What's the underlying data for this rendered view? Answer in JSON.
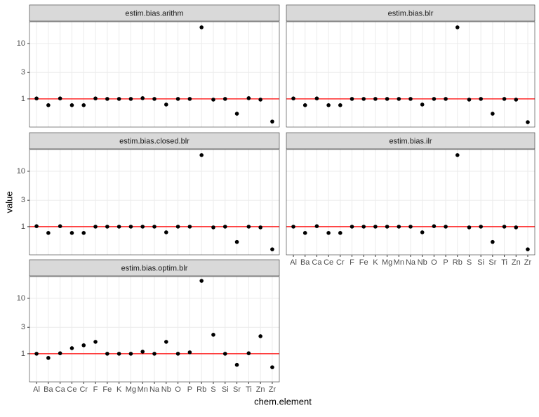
{
  "chart_data": {
    "type": "scatter",
    "x_label": "chem.element",
    "y_label": "value",
    "log_scale": true,
    "grid": true,
    "ylim": [
      0.31,
      24.7
    ],
    "yticks": [
      1,
      3,
      10
    ],
    "hline": 1,
    "hline_color": "#ff0000",
    "point_color": "#000000",
    "categories": [
      "Al",
      "Ba",
      "Ca",
      "Ce",
      "Cr",
      "F",
      "Fe",
      "K",
      "Mg",
      "Mn",
      "Na",
      "Nb",
      "O",
      "P",
      "Rb",
      "S",
      "Si",
      "Sr",
      "Ti",
      "Zn",
      "Zr"
    ],
    "facets": [
      {
        "title": "estim.bias.arithm",
        "values": [
          1.02,
          0.77,
          1.02,
          0.77,
          0.77,
          1.02,
          1.0,
          1.0,
          1.0,
          1.03,
          1.0,
          0.79,
          1.0,
          1.0,
          19.6,
          0.97,
          1.0,
          0.54,
          1.03,
          0.97,
          0.39
        ]
      },
      {
        "title": "estim.bias.blr",
        "values": [
          1.02,
          0.77,
          1.02,
          0.77,
          0.77,
          1.0,
          1.0,
          1.0,
          1.0,
          1.0,
          1.0,
          0.79,
          1.0,
          1.0,
          19.6,
          0.97,
          1.0,
          0.54,
          1.0,
          0.97,
          0.38
        ]
      },
      {
        "title": "estim.bias.closed.blr",
        "values": [
          1.02,
          0.77,
          1.02,
          0.77,
          0.77,
          1.0,
          1.0,
          1.0,
          1.0,
          1.0,
          1.0,
          0.79,
          1.0,
          1.0,
          19.6,
          0.97,
          1.0,
          0.53,
          1.0,
          0.97,
          0.39
        ]
      },
      {
        "title": "estim.bias.ilr",
        "values": [
          1.0,
          0.77,
          1.02,
          0.77,
          0.77,
          1.0,
          1.0,
          1.0,
          1.0,
          1.0,
          1.0,
          0.79,
          1.02,
          1.0,
          19.6,
          0.97,
          1.0,
          0.53,
          1.0,
          0.97,
          0.39
        ]
      },
      {
        "title": "estim.bias.optim.blr",
        "values": [
          1.0,
          0.84,
          1.02,
          1.26,
          1.42,
          1.64,
          1.0,
          1.0,
          1.0,
          1.09,
          1.0,
          1.64,
          1.0,
          1.06,
          20.7,
          2.2,
          1.0,
          0.63,
          1.02,
          2.07,
          0.57
        ]
      }
    ]
  }
}
